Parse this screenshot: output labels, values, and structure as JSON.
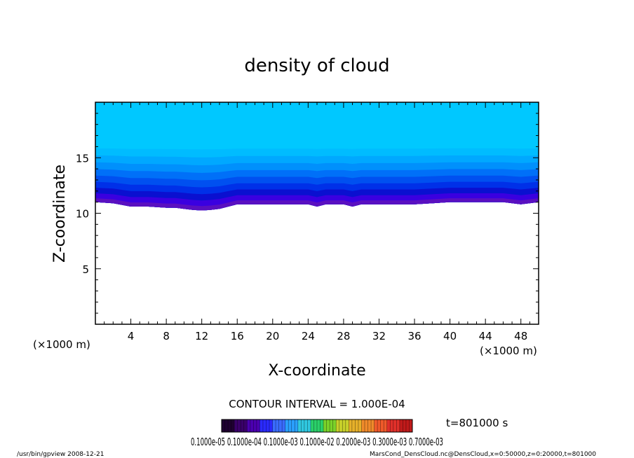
{
  "chart_data": {
    "type": "heatmap",
    "title": "density of cloud",
    "xlabel": "X-coordinate",
    "ylabel": "Z-coordinate",
    "x_unit": "(×1000 m)",
    "y_unit": "(×1000 m)",
    "xlim": [
      0,
      50
    ],
    "ylim": [
      0,
      20
    ],
    "x_ticks": [
      4,
      8,
      12,
      16,
      20,
      24,
      28,
      32,
      36,
      40,
      44,
      48
    ],
    "y_ticks": [
      5,
      10,
      15
    ],
    "cloud_base": {
      "x": [
        0,
        2,
        4,
        6,
        8,
        9,
        10,
        11,
        12,
        13,
        14,
        15,
        16,
        18,
        20,
        22,
        24,
        25,
        26,
        28,
        29,
        30,
        32,
        36,
        38,
        40,
        44,
        46,
        48,
        50
      ],
      "z": [
        11.0,
        10.9,
        10.6,
        10.6,
        10.5,
        10.5,
        10.4,
        10.3,
        10.25,
        10.3,
        10.4,
        10.6,
        10.8,
        10.8,
        10.8,
        10.8,
        10.8,
        10.6,
        10.8,
        10.8,
        10.6,
        10.8,
        10.8,
        10.8,
        10.9,
        11.0,
        11.0,
        11.0,
        10.8,
        11.0
      ]
    },
    "cloud_top_z": 16.5,
    "domain_top_z": 20,
    "contour_interval": "CONTOUR INTERVAL = 1.000E-04",
    "time_label": "t=801000 s",
    "colorbar_labels": "0.1000e-05 0.1000e-04 0.1000e-03 0.1000e-02 0.2000e-03 0.3000e-03 0.7000e-03",
    "colorbar_colors": [
      "#1e0030",
      "#3a006a",
      "#4b00b0",
      "#2a2aff",
      "#3a6cff",
      "#2aa0ff",
      "#30c8e0",
      "#2ad06a",
      "#7ad22a",
      "#c8d02a",
      "#e6b02a",
      "#f08a2a",
      "#f05a2a",
      "#e0302a",
      "#c01a1a"
    ],
    "cloud_colors": [
      "#6a00aa",
      "#5a10c0",
      "#3a00e0",
      "#0a10d0",
      "#0030e8",
      "#0050f0",
      "#0070f8",
      "#0090fc",
      "#00a8ff",
      "#00bcff",
      "#00c8ff"
    ]
  },
  "footer": {
    "left": "/usr/bin/gpview   2008-12-21",
    "right": "MarsCond_DensCloud.nc@DensCloud,x=0:50000,z=0:20000,t=801000"
  }
}
